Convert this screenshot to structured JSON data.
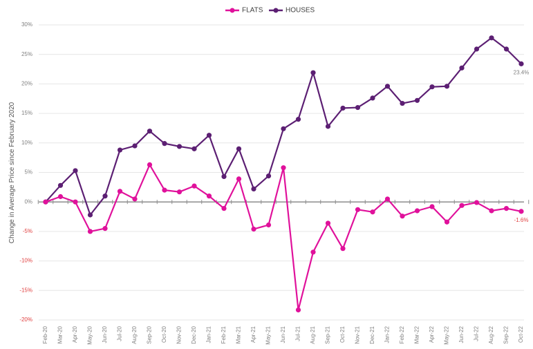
{
  "chart_data": {
    "type": "line",
    "title": "",
    "xlabel": "",
    "ylabel": "Change in Average Price since February 2020",
    "y_unit": "%",
    "ylim": [
      -20,
      30
    ],
    "yticks": [
      30,
      25,
      20,
      15,
      10,
      5,
      0,
      -5,
      -10,
      -15,
      -20
    ],
    "ytick_labels": [
      "30%",
      "25%",
      "20%",
      "15%",
      "10%",
      "5%",
      "0%",
      "-5%",
      "-10%",
      "-15%",
      "-20%"
    ],
    "grid": true,
    "legend_position": "top-center",
    "categories": [
      "Feb-20",
      "Mar-20",
      "Apr-20",
      "May-20",
      "Jun-20",
      "Jul-20",
      "Aug-20",
      "Sep-20",
      "Oct-20",
      "Nov-20",
      "Dec-20",
      "Jan-21",
      "Feb-21",
      "Mar-21",
      "Apr-21",
      "May-21",
      "Jun-21",
      "Jul-21",
      "Aug-21",
      "Sep-21",
      "Oct-21",
      "Nov-21",
      "Dec-21",
      "Jan-22",
      "Feb-22",
      "Mar-22",
      "Apr-22",
      "May-22",
      "Jun-22",
      "Jul-22",
      "Aug-22",
      "Sep-22",
      "Oct-22"
    ],
    "series": [
      {
        "name": "FLATS",
        "color": "#e0119b",
        "values": [
          0,
          0.9,
          0,
          -5.0,
          -4.5,
          1.8,
          0.5,
          6.3,
          2.0,
          1.7,
          2.7,
          1.0,
          -1.1,
          3.9,
          -4.6,
          -3.9,
          5.8,
          -18.3,
          -8.5,
          -3.6,
          -7.9,
          -1.3,
          -1.7,
          0.5,
          -2.4,
          -1.5,
          -0.8,
          -3.4,
          -0.6,
          -0.1,
          -1.5,
          -1.1,
          -1.6
        ],
        "end_label": "-1.6%"
      },
      {
        "name": "HOUSES",
        "color": "#5c1f73",
        "values": [
          0,
          2.8,
          5.3,
          -2.2,
          1.0,
          8.8,
          9.5,
          12.0,
          9.9,
          9.4,
          9.0,
          11.3,
          4.3,
          9.0,
          2.2,
          4.4,
          12.4,
          14.0,
          21.9,
          12.8,
          15.9,
          16.0,
          17.6,
          19.6,
          16.7,
          17.2,
          19.5,
          19.6,
          22.7,
          25.9,
          27.8,
          25.9,
          23.4
        ],
        "end_label": "23.4%"
      }
    ]
  },
  "colors": {
    "negative_label": "#e04040",
    "positive_label": "#808080",
    "grid": "#e6e6e6",
    "zero_axis": "#8c8c8c"
  }
}
